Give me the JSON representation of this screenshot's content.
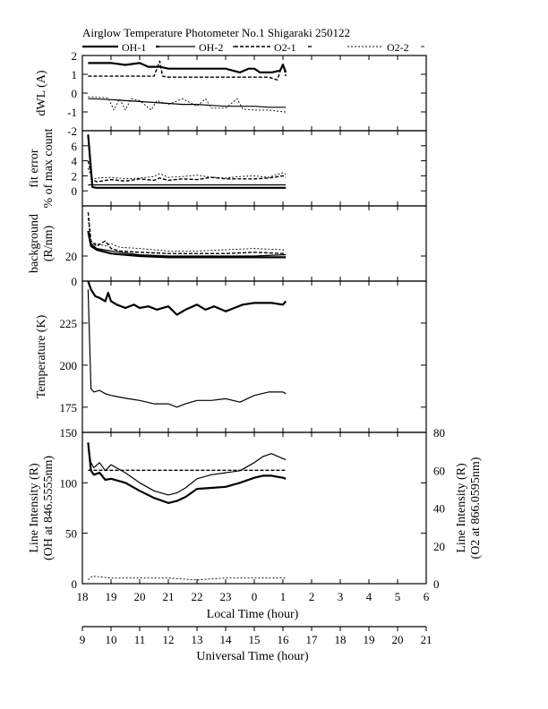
{
  "title": "Airglow Temperature Photometer No.1  Shigaraki   250122",
  "legend": [
    {
      "label": "OH-1",
      "style": "solid-thick"
    },
    {
      "label": "OH-2",
      "style": "solid"
    },
    {
      "label": "O2-1",
      "style": "dash"
    },
    {
      "label": "O2-2",
      "style": "dot"
    }
  ],
  "xaxis": {
    "local_label": "Local Time (hour)",
    "ut_label": "Universal Time (hour)",
    "local_ticks": [
      "18",
      "19",
      "20",
      "21",
      "22",
      "23",
      "0",
      "1",
      "2",
      "3",
      "4",
      "5",
      "6"
    ],
    "ut_ticks": [
      "9",
      "10",
      "11",
      "12",
      "13",
      "14",
      "15",
      "16",
      "17",
      "18",
      "19",
      "20",
      "21"
    ]
  },
  "chart_data": [
    {
      "type": "line",
      "id": "dwl",
      "ylabel": "dWL (A)",
      "ylim": [
        -2,
        2
      ],
      "yticks": [
        "2",
        "1",
        "0",
        "-1",
        "-2"
      ],
      "x_unit": "UT hour",
      "series": [
        {
          "name": "OH-1",
          "x": [
            9.2,
            9.35,
            10.0,
            10.5,
            11.0,
            11.3,
            11.7,
            12.0,
            12.5,
            13.0,
            13.5,
            14.0,
            14.5,
            14.8,
            15.0,
            15.2,
            15.6,
            15.9,
            16.0,
            16.1
          ],
          "y": [
            1.6,
            1.6,
            1.6,
            1.5,
            1.6,
            1.4,
            1.4,
            1.3,
            1.3,
            1.3,
            1.3,
            1.3,
            1.1,
            1.3,
            1.3,
            1.1,
            1.1,
            1.2,
            1.5,
            1.1
          ]
        },
        {
          "name": "OH-2",
          "x": [
            9.2,
            9.35,
            10.0,
            10.5,
            11.0,
            11.5,
            12.0,
            12.5,
            13.0,
            13.5,
            14.0,
            14.5,
            15.0,
            15.5,
            16.0,
            16.1
          ],
          "y": [
            -0.3,
            -0.3,
            -0.35,
            -0.4,
            -0.45,
            -0.5,
            -0.55,
            -0.6,
            -0.6,
            -0.65,
            -0.7,
            -0.7,
            -0.7,
            -0.75,
            -0.75,
            -0.75
          ]
        },
        {
          "name": "O2-1",
          "x": [
            9.2,
            9.35,
            10.0,
            10.5,
            11.0,
            11.5,
            11.7,
            11.8,
            12.0,
            12.5,
            13.0,
            13.5,
            14.0,
            14.5,
            15.0,
            15.5,
            15.8,
            16.0,
            16.1
          ],
          "y": [
            0.9,
            0.9,
            0.9,
            0.9,
            0.9,
            0.9,
            1.7,
            0.9,
            0.85,
            0.85,
            0.85,
            0.85,
            0.85,
            0.85,
            0.85,
            0.85,
            0.7,
            1.6,
            0.9
          ]
        },
        {
          "name": "O2-2",
          "x": [
            9.2,
            9.35,
            9.9,
            10.1,
            10.3,
            10.5,
            10.7,
            11.0,
            11.4,
            11.6,
            11.8,
            12.0,
            12.5,
            13.0,
            13.3,
            13.5,
            14.0,
            14.4,
            14.6,
            15.0,
            15.5,
            16.0,
            16.1
          ],
          "y": [
            -0.2,
            -0.2,
            -0.25,
            -0.9,
            -0.3,
            -0.9,
            -0.3,
            -0.4,
            -0.9,
            -0.4,
            -0.5,
            -0.6,
            -0.3,
            -0.7,
            -0.3,
            -0.8,
            -0.8,
            -0.3,
            -0.85,
            -0.9,
            -0.9,
            -1.0,
            -1.0
          ]
        }
      ]
    },
    {
      "type": "line",
      "id": "fit",
      "ylabel": [
        "fit error",
        "% of max count"
      ],
      "ylim": [
        -2,
        8
      ],
      "yticks": [
        "6",
        "4",
        "2",
        "0"
      ],
      "x_unit": "UT hour",
      "series": [
        {
          "name": "OH-1",
          "x": [
            9.2,
            9.35,
            9.5,
            10.0,
            11.0,
            12.0,
            13.0,
            14.0,
            15.0,
            16.0,
            16.1
          ],
          "y": [
            7.5,
            0.5,
            0.4,
            0.4,
            0.4,
            0.4,
            0.4,
            0.4,
            0.4,
            0.4,
            0.4
          ]
        },
        {
          "name": "OH-2",
          "x": [
            9.2,
            9.4,
            9.6,
            10.0,
            11.0,
            12.0,
            13.0,
            14.0,
            15.0,
            16.0,
            16.1
          ],
          "y": [
            0.8,
            0.8,
            0.8,
            0.8,
            0.8,
            0.8,
            0.8,
            0.8,
            0.8,
            0.8,
            0.8
          ]
        },
        {
          "name": "O2-1",
          "x": [
            9.2,
            9.35,
            9.5,
            10.0,
            10.5,
            11.0,
            11.5,
            11.7,
            12.0,
            12.5,
            13.0,
            13.5,
            14.0,
            14.5,
            15.0,
            15.5,
            16.0,
            16.1
          ],
          "y": [
            4.0,
            1.5,
            1.2,
            1.5,
            1.3,
            1.6,
            1.4,
            1.7,
            1.4,
            1.6,
            1.5,
            1.8,
            1.6,
            1.6,
            1.6,
            1.7,
            2.0,
            1.8
          ]
        },
        {
          "name": "O2-2",
          "x": [
            9.2,
            9.35,
            9.5,
            10.0,
            10.5,
            11.0,
            11.5,
            11.7,
            12.0,
            12.5,
            13.0,
            13.5,
            14.0,
            14.5,
            15.0,
            15.5,
            16.0,
            16.1
          ],
          "y": [
            3.0,
            1.5,
            1.7,
            1.8,
            1.6,
            1.7,
            1.9,
            2.3,
            1.8,
            1.9,
            2.1,
            1.8,
            1.7,
            1.9,
            2.0,
            1.8,
            2.4,
            2.2
          ]
        }
      ]
    },
    {
      "type": "line",
      "id": "bg",
      "ylabel": [
        "background",
        "(R/nm)"
      ],
      "ylim": [
        0,
        60
      ],
      "yticks": [
        "20",
        "0"
      ],
      "x_unit": "UT hour",
      "series": [
        {
          "name": "OH-1",
          "x": [
            9.2,
            9.3,
            9.5,
            10.0,
            11.0,
            12.0,
            13.0,
            14.0,
            15.0,
            16.0,
            16.1
          ],
          "y": [
            40,
            28,
            25,
            22,
            20,
            19,
            19,
            19,
            19,
            19,
            19
          ]
        },
        {
          "name": "OH-2",
          "x": [
            9.2,
            9.3,
            9.5,
            10.0,
            11.0,
            12.0,
            13.0,
            14.0,
            15.0,
            16.0,
            16.1
          ],
          "y": [
            38,
            30,
            26,
            24,
            21,
            20,
            20,
            20,
            20,
            21,
            21
          ]
        },
        {
          "name": "O2-1",
          "x": [
            9.2,
            9.3,
            9.5,
            9.8,
            10.0,
            10.3,
            11.0,
            12.0,
            13.0,
            14.0,
            15.0,
            16.0,
            16.1
          ],
          "y": [
            55,
            32,
            28,
            32,
            26,
            24,
            23,
            22,
            22,
            22,
            23,
            22,
            22
          ]
        },
        {
          "name": "O2-2",
          "x": [
            9.2,
            9.3,
            9.5,
            9.8,
            10.0,
            10.3,
            11.0,
            12.0,
            13.0,
            14.0,
            15.0,
            16.0,
            16.1
          ],
          "y": [
            50,
            30,
            30,
            28,
            30,
            27,
            26,
            24,
            24,
            25,
            26,
            25,
            25
          ]
        }
      ]
    },
    {
      "type": "line",
      "id": "temp",
      "ylabel": "Temperature (K)",
      "ylim": [
        160,
        250
      ],
      "yticks": [
        "225",
        "200",
        "175"
      ],
      "x_unit": "UT hour",
      "series": [
        {
          "name": "OH-1",
          "x": [
            9.2,
            9.3,
            9.45,
            9.6,
            9.8,
            9.9,
            10.0,
            10.2,
            10.5,
            10.8,
            11.0,
            11.3,
            11.6,
            12.0,
            12.3,
            12.6,
            13.0,
            13.3,
            13.6,
            14.0,
            14.3,
            14.6,
            15.0,
            15.3,
            15.6,
            16.0,
            16.1
          ],
          "y": [
            250,
            245,
            241,
            240,
            238,
            243,
            238,
            236,
            234,
            236,
            234,
            235,
            233,
            235,
            230,
            233,
            236,
            233,
            235,
            232,
            234,
            236,
            237,
            237,
            237,
            236,
            238
          ]
        },
        {
          "name": "OH-2",
          "x": [
            9.2,
            9.3,
            9.4,
            9.6,
            9.8,
            10.0,
            10.3,
            10.6,
            11.0,
            11.5,
            12.0,
            12.3,
            12.6,
            13.0,
            13.5,
            14.0,
            14.5,
            15.0,
            15.5,
            16.0,
            16.1
          ],
          "y": [
            245,
            186,
            184,
            185,
            183,
            182,
            181,
            180,
            179,
            177,
            177,
            175,
            177,
            179,
            179,
            180,
            178,
            182,
            184,
            184,
            183
          ]
        }
      ]
    },
    {
      "type": "line",
      "id": "int",
      "ylabel": [
        "Line Intensity (R)",
        "(OH at 846.5555nm)"
      ],
      "ylabel_right": [
        "Line Intensity (R)",
        "(O2 at 866.0595nm)"
      ],
      "ylim": [
        0,
        150
      ],
      "ylim_right": [
        0,
        80
      ],
      "yticks": [
        "150",
        "100",
        "50",
        "0"
      ],
      "yticks_right": [
        "80",
        "60",
        "40",
        "20",
        "0"
      ],
      "x_unit": "UT hour",
      "series": [
        {
          "name": "OH-1",
          "x": [
            9.2,
            9.3,
            9.4,
            9.6,
            9.8,
            10.0,
            10.5,
            11.0,
            11.5,
            12.0,
            12.3,
            12.6,
            13.0,
            13.5,
            14.0,
            14.5,
            15.0,
            15.3,
            15.6,
            16.0,
            16.1
          ],
          "y": [
            140,
            112,
            108,
            110,
            103,
            104,
            100,
            92,
            85,
            80,
            82,
            86,
            94,
            95,
            96,
            100,
            105,
            107,
            107,
            105,
            104
          ]
        },
        {
          "name": "OH-2",
          "x": [
            9.2,
            9.3,
            9.4,
            9.6,
            9.8,
            10.0,
            10.5,
            11.0,
            11.5,
            12.0,
            12.3,
            12.6,
            13.0,
            13.5,
            14.0,
            14.5,
            15.0,
            15.3,
            15.6,
            16.0,
            16.1
          ],
          "y": [
            135,
            120,
            115,
            120,
            112,
            118,
            110,
            100,
            92,
            88,
            90,
            95,
            104,
            108,
            110,
            112,
            120,
            126,
            129,
            124,
            123
          ]
        },
        {
          "name": "O2-1",
          "x": [
            9.2,
            9.35,
            10.0,
            11.0,
            12.0,
            13.0,
            14.0,
            15.0,
            16.0,
            16.1
          ],
          "y": [
            60,
            60,
            60,
            60,
            60,
            60,
            60,
            60,
            60,
            60
          ],
          "axis": "right"
        },
        {
          "name": "O2-2",
          "x": [
            9.2,
            9.35,
            10.0,
            11.0,
            12.0,
            13.0,
            14.0,
            15.0,
            16.0,
            16.1
          ],
          "y": [
            2,
            4,
            3,
            3,
            3,
            2,
            3,
            3,
            3,
            3
          ],
          "axis": "right"
        }
      ]
    }
  ]
}
